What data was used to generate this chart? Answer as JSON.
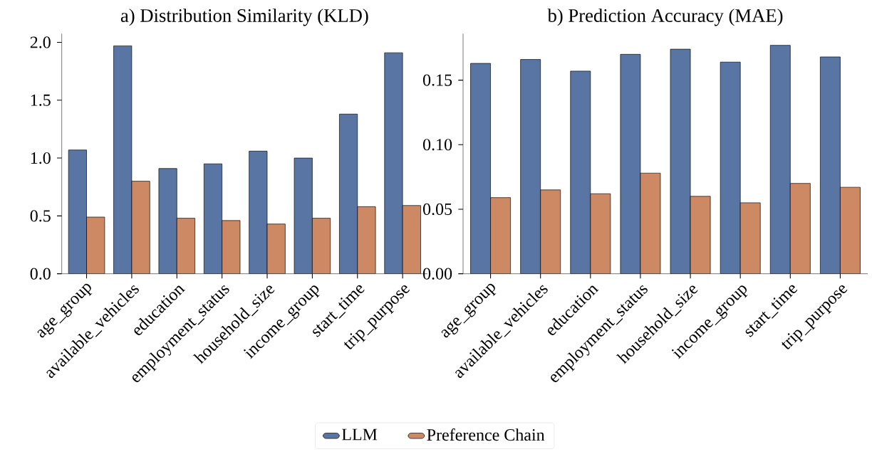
{
  "chart_data": [
    {
      "type": "bar",
      "title": "a) Distribution Similarity (KLD)",
      "categories": [
        "age_group",
        "available_vehicles",
        "education",
        "employment_status",
        "household_size",
        "income_group",
        "start_time",
        "trip_purpose"
      ],
      "series": [
        {
          "name": "LLM",
          "color": "#5975a4",
          "values": [
            1.07,
            1.97,
            0.91,
            0.95,
            1.06,
            1.0,
            1.38,
            1.91
          ]
        },
        {
          "name": "Preference Chain",
          "color": "#cc8963",
          "values": [
            0.49,
            0.8,
            0.48,
            0.46,
            0.43,
            0.48,
            0.58,
            0.59
          ]
        }
      ],
      "ylim": [
        0,
        2.075
      ],
      "yticks": [
        {
          "value": 0,
          "label": "0.0"
        },
        {
          "value": 0.5,
          "label": "0.5"
        },
        {
          "value": 1,
          "label": "1.0"
        },
        {
          "value": 1.5,
          "label": "1.5"
        },
        {
          "value": 2,
          "label": "2.0"
        }
      ],
      "legend": "bottom"
    },
    {
      "type": "bar",
      "title": "b) Prediction Accuracy (MAE)",
      "categories": [
        "age_group",
        "available_vehicles",
        "education",
        "employment_status",
        "household_size",
        "income_group",
        "start_time",
        "trip_purpose"
      ],
      "series": [
        {
          "color": "#5975a4",
          "values": [
            0.163,
            0.166,
            0.157,
            0.17,
            0.174,
            0.164,
            0.177,
            0.168
          ]
        },
        {
          "color": "#cc8963",
          "values": [
            0.059,
            0.065,
            0.062,
            0.078,
            0.06,
            0.055,
            0.07,
            0.067
          ]
        }
      ],
      "ylim": [
        0,
        0.186
      ],
      "yticks": [
        {
          "value": 0,
          "label": "0.00"
        },
        {
          "value": 0.05,
          "label": "0.05"
        },
        {
          "value": 0.1,
          "label": "0.10"
        },
        {
          "value": 0.15,
          "label": "0.15"
        }
      ]
    }
  ]
}
